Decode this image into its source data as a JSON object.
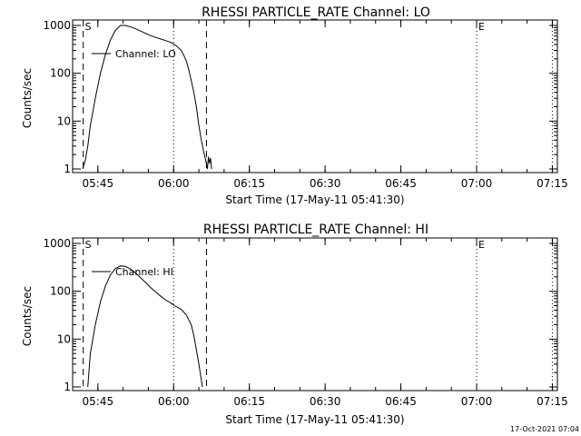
{
  "footer": {
    "timestamp": "17-Oct-2021 07:04"
  },
  "chart_data": [
    {
      "type": "line",
      "title": "RHESSI PARTICLE_RATE Channel: LO",
      "xlabel": "Start Time (17-May-11 05:41:30)",
      "ylabel": "Counts/sec",
      "yscale": "log",
      "ylim": [
        1,
        1000
      ],
      "xlim_minutes": [
        -1.5,
        94.5
      ],
      "xticks": [
        {
          "t": 3.5,
          "label": "05:45"
        },
        {
          "t": 18.5,
          "label": "06:00"
        },
        {
          "t": 33.5,
          "label": "06:15"
        },
        {
          "t": 48.5,
          "label": "06:30"
        },
        {
          "t": 63.5,
          "label": "06:45"
        },
        {
          "t": 78.5,
          "label": "07:00"
        },
        {
          "t": 93.5,
          "label": "07:15"
        }
      ],
      "yticks": [
        {
          "v": 1,
          "label": "1"
        },
        {
          "v": 10,
          "label": "10"
        },
        {
          "v": 100,
          "label": "100"
        },
        {
          "v": 1000,
          "label": "1000"
        }
      ],
      "legend": "Channel: LO",
      "markers": [
        {
          "t": 0.6,
          "style": "dashed",
          "label": "S"
        },
        {
          "t": 18.5,
          "style": "dotted",
          "label": ""
        },
        {
          "t": 25.0,
          "style": "dashed",
          "label": ""
        },
        {
          "t": 78.5,
          "style": "dotted",
          "label": "E"
        },
        {
          "t": 93.5,
          "style": "dotted",
          "label": ""
        }
      ],
      "series": [
        {
          "x": [
            0.5,
            1.0,
            1.5,
            2.0,
            3.0,
            4.0,
            5.0,
            6.0,
            7.0,
            8.0,
            9.0,
            10.0,
            11.0,
            12.0,
            13.0,
            14.0,
            15.0,
            16.0,
            17.0,
            18.0,
            19.0,
            20.0,
            20.5,
            21.0,
            21.5,
            22.0,
            22.5,
            23.0,
            23.5,
            24.0,
            24.5,
            25.0,
            25.2,
            25.4,
            25.6,
            25.8,
            26.0
          ],
          "y": [
            1.0,
            1.5,
            3.0,
            8.0,
            30,
            100,
            250,
            500,
            800,
            1000,
            1000,
            930,
            850,
            760,
            680,
            610,
            560,
            520,
            480,
            440,
            380,
            300,
            240,
            180,
            120,
            70,
            40,
            20,
            8,
            4,
            2.2,
            1.3,
            1.0,
            1.8,
            1.3,
            1.7,
            1.0
          ]
        }
      ]
    },
    {
      "type": "line",
      "title": "RHESSI PARTICLE_RATE Channel: HI",
      "xlabel": "Start Time (17-May-11 05:41:30)",
      "ylabel": "Counts/sec",
      "yscale": "log",
      "ylim": [
        1,
        1000
      ],
      "xlim_minutes": [
        -1.5,
        94.5
      ],
      "xticks": [
        {
          "t": 3.5,
          "label": "05:45"
        },
        {
          "t": 18.5,
          "label": "06:00"
        },
        {
          "t": 33.5,
          "label": "06:15"
        },
        {
          "t": 48.5,
          "label": "06:30"
        },
        {
          "t": 63.5,
          "label": "06:45"
        },
        {
          "t": 78.5,
          "label": "07:00"
        },
        {
          "t": 93.5,
          "label": "07:15"
        }
      ],
      "yticks": [
        {
          "v": 1,
          "label": "1"
        },
        {
          "v": 10,
          "label": "10"
        },
        {
          "v": 100,
          "label": "100"
        },
        {
          "v": 1000,
          "label": "1000"
        }
      ],
      "legend": "Channel: HI",
      "markers": [
        {
          "t": 0.6,
          "style": "dashed",
          "label": "S"
        },
        {
          "t": 18.5,
          "style": "dotted",
          "label": ""
        },
        {
          "t": 25.0,
          "style": "dashed",
          "label": ""
        },
        {
          "t": 78.5,
          "style": "dotted",
          "label": "E"
        },
        {
          "t": 93.5,
          "style": "dotted",
          "label": ""
        }
      ],
      "series": [
        {
          "x": [
            1.5,
            2.0,
            3.0,
            4.0,
            5.0,
            6.0,
            7.0,
            8.0,
            9.0,
            10.0,
            11.0,
            12.0,
            13.0,
            14.0,
            15.0,
            16.0,
            17.0,
            18.0,
            19.0,
            20.0,
            21.0,
            22.0,
            22.5,
            23.0,
            23.5,
            24.0,
            24.2
          ],
          "y": [
            1.0,
            5.0,
            20,
            60,
            130,
            220,
            300,
            340,
            330,
            290,
            240,
            190,
            150,
            118,
            95,
            78,
            65,
            56,
            48,
            42,
            32,
            20,
            12,
            6,
            3,
            1.4,
            1.0
          ]
        }
      ]
    }
  ]
}
